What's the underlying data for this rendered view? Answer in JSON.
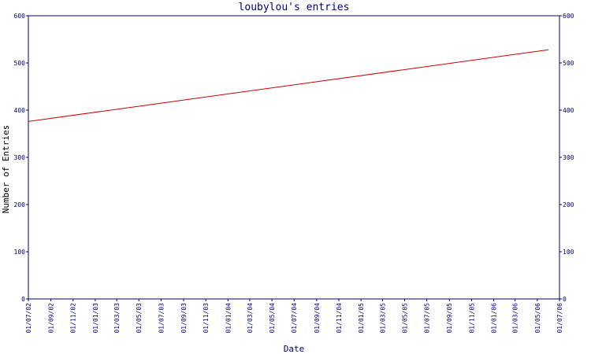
{
  "chart_data": {
    "type": "line",
    "title": "loubylou's entries",
    "xlabel": "Date",
    "ylabel": "Number of Entries",
    "ylim": [
      0,
      600
    ],
    "yticks": [
      "0",
      "100",
      "200",
      "300",
      "400",
      "500",
      "600"
    ],
    "xticks": [
      "01/07/02",
      "01/09/02",
      "01/11/02",
      "01/01/03",
      "01/03/03",
      "01/05/03",
      "01/07/03",
      "01/09/03",
      "01/11/03",
      "01/01/04",
      "01/03/04",
      "01/05/04",
      "01/07/04",
      "01/09/04",
      "01/11/04",
      "01/01/05",
      "01/03/05",
      "01/05/05",
      "01/07/05",
      "01/09/05",
      "01/11/05",
      "01/01/06",
      "01/03/06",
      "01/05/06",
      "01/07/06"
    ],
    "grid": false,
    "right_axis_mirror": true,
    "series": [
      {
        "x": [
          "01/07/02",
          "01/06/06"
        ],
        "values": [
          376,
          528
        ]
      }
    ],
    "colors": {
      "axis": "#00007f",
      "line": "#cc0000",
      "ylabel": "#000000"
    }
  }
}
